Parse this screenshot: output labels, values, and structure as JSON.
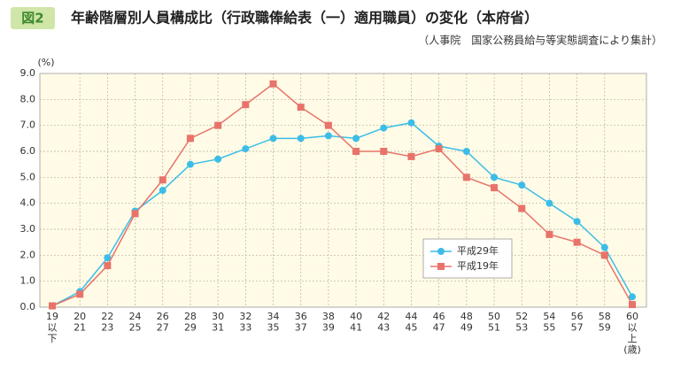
{
  "chart_data": {
    "type": "line",
    "badge": "図2",
    "title": "年齢階層別人員構成比（行政職俸給表（一）適用職員）の変化（本府省）",
    "subtitle": "（人事院　国家公務員給与等実態調査により集計）",
    "y_unit": "(%)",
    "categories": [
      [
        "19",
        "以",
        "下"
      ],
      [
        "20",
        "21"
      ],
      [
        "22",
        "23"
      ],
      [
        "24",
        "25"
      ],
      [
        "26",
        "27"
      ],
      [
        "28",
        "29"
      ],
      [
        "30",
        "31"
      ],
      [
        "32",
        "33"
      ],
      [
        "34",
        "35"
      ],
      [
        "36",
        "37"
      ],
      [
        "38",
        "39"
      ],
      [
        "40",
        "41"
      ],
      [
        "42",
        "43"
      ],
      [
        "44",
        "45"
      ],
      [
        "46",
        "47"
      ],
      [
        "48",
        "49"
      ],
      [
        "50",
        "51"
      ],
      [
        "52",
        "53"
      ],
      [
        "54",
        "55"
      ],
      [
        "56",
        "57"
      ],
      [
        "58",
        "59"
      ],
      [
        "60",
        "以",
        "上",
        "(歳)"
      ]
    ],
    "series": [
      {
        "name": "平成29年",
        "color": "#3cbde8",
        "marker": "circle",
        "values": [
          0.05,
          0.6,
          1.9,
          3.7,
          4.5,
          5.5,
          5.7,
          6.1,
          6.5,
          6.5,
          6.6,
          6.5,
          6.9,
          7.1,
          6.2,
          6.0,
          5.0,
          4.7,
          4.0,
          3.3,
          2.3,
          0.4
        ]
      },
      {
        "name": "平成19年",
        "color": "#e8736a",
        "marker": "square",
        "values": [
          0.05,
          0.5,
          1.6,
          3.6,
          4.9,
          6.5,
          7.0,
          7.8,
          8.6,
          7.7,
          7.0,
          6.0,
          6.0,
          5.8,
          6.1,
          5.0,
          4.6,
          3.8,
          2.8,
          2.5,
          2.0,
          0.1
        ]
      }
    ],
    "ylim": [
      0,
      9
    ],
    "yticks": [
      {
        "value": 0,
        "label": "0.0"
      },
      {
        "value": 1,
        "label": "1.0"
      },
      {
        "value": 2,
        "label": "2.0"
      },
      {
        "value": 3,
        "label": "3.0"
      },
      {
        "value": 4,
        "label": "4.0"
      },
      {
        "value": 5,
        "label": "5.0"
      },
      {
        "value": 6,
        "label": "6.0"
      },
      {
        "value": 7,
        "label": "7.0"
      },
      {
        "value": 8,
        "label": "8.0"
      },
      {
        "value": 9,
        "label": "9.0"
      }
    ],
    "grid": true
  }
}
